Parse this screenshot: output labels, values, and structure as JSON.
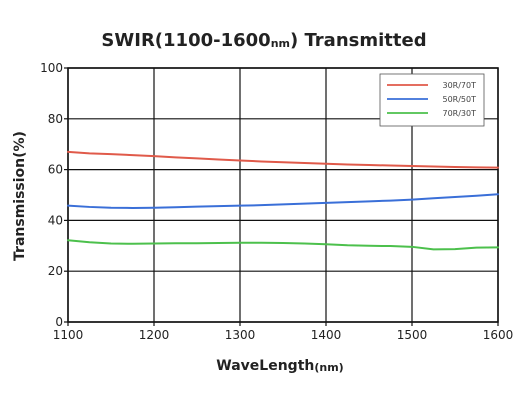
{
  "chart_data": {
    "type": "line",
    "title_main": "SWIR(1100-1600",
    "title_unit": "nm",
    "title_tail": ")  Transmitted",
    "xlabel_main": "WaveLength",
    "xlabel_unit": "(nm)",
    "ylabel": "Transmission(%)",
    "xlim": [
      1100,
      1600
    ],
    "ylim": [
      0,
      100
    ],
    "x_ticks": [
      1100,
      1200,
      1300,
      1400,
      1500,
      1600
    ],
    "y_ticks": [
      0,
      20,
      40,
      60,
      80,
      100
    ],
    "grid": true,
    "legend_position": "top-right",
    "x": [
      1100,
      1125,
      1150,
      1175,
      1200,
      1225,
      1250,
      1275,
      1300,
      1325,
      1350,
      1375,
      1400,
      1425,
      1450,
      1475,
      1500,
      1525,
      1550,
      1575,
      1600
    ],
    "series": [
      {
        "name": "30R/70T",
        "color": "#e05a4a",
        "values": [
          67,
          66.4,
          66.1,
          65.7,
          65.3,
          64.8,
          64.4,
          64.0,
          63.6,
          63.2,
          62.9,
          62.6,
          62.3,
          62.0,
          61.8,
          61.6,
          61.4,
          61.2,
          61.0,
          60.9,
          60.8
        ]
      },
      {
        "name": "50R/50T",
        "color": "#3a6fd8",
        "values": [
          45.8,
          45.3,
          45.0,
          44.9,
          45.0,
          45.2,
          45.4,
          45.6,
          45.8,
          46.0,
          46.3,
          46.6,
          46.9,
          47.2,
          47.5,
          47.8,
          48.2,
          48.7,
          49.2,
          49.7,
          50.3
        ]
      },
      {
        "name": "70R/30T",
        "color": "#4cc04c",
        "values": [
          32.2,
          31.4,
          30.9,
          30.8,
          30.9,
          31.0,
          31.0,
          31.1,
          31.2,
          31.2,
          31.1,
          30.9,
          30.6,
          30.2,
          30.0,
          29.9,
          29.6,
          28.6,
          28.7,
          29.3,
          29.4
        ]
      }
    ]
  }
}
